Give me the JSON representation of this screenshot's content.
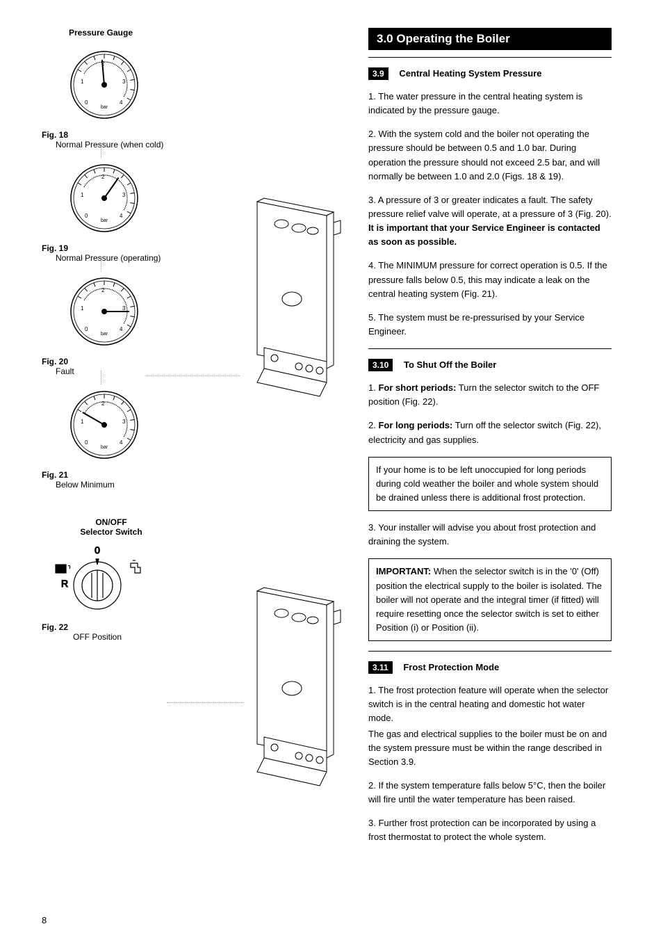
{
  "page_number": "8",
  "left": {
    "pressure_gauge_title": "Pressure Gauge",
    "figs": [
      {
        "label": "Fig. 18",
        "caption": "Normal Pressure (when cold)",
        "needle_deg": -95,
        "fill_start": -150,
        "fill_end": -95
      },
      {
        "label": "Fig. 19",
        "caption": "Normal Pressure (operating)",
        "needle_deg": -55,
        "fill_start": -150,
        "fill_end": -55
      },
      {
        "label": "Fig. 20",
        "caption": "Fault",
        "needle_deg": 0,
        "fill_start": -150,
        "fill_end": 0
      },
      {
        "label": "Fig. 21",
        "caption": "Below Minimum",
        "needle_deg": -150,
        "fill_start": -150,
        "fill_end": -150
      }
    ],
    "switch": {
      "title1": "ON/OFF",
      "title2": "Selector Switch",
      "fig_label": "Fig. 22",
      "caption": "OFF Position",
      "zero": "0",
      "r": "R"
    }
  },
  "right": {
    "section_header": "3.0  Operating the Boiler",
    "s39": {
      "num": "3.9",
      "title": "Central Heating System Pressure",
      "p1": "1. The water pressure in the central heating system is indicated by the pressure gauge.",
      "p2": "2. With the system cold and the boiler not operating the pressure should be between 0.5 and 1.0 bar. During operation the pressure should not exceed 2.5 bar, and will normally be between 1.0 and 2.0 (Figs. 18 & 19).",
      "p3a": "3. A pressure of 3 or greater indicates a fault. The safety pressure relief valve will operate, at a pressure of 3 (Fig. 20). ",
      "p3b": "It is important that your Service Engineer is contacted as soon as possible.",
      "p4": "4. The MINIMUM pressure for correct operation is 0.5. If the pressure falls below 0.5, this may indicate a leak on the central heating system (Fig. 21).",
      "p5": "5. The system must be re-pressurised by your Service Engineer."
    },
    "s310": {
      "num": "3.10",
      "title": "To Shut Off the Boiler",
      "p1a": "1. ",
      "p1b": "For short periods:",
      "p1c": " Turn the selector switch to the OFF position (Fig. 22).",
      "p2a": "2. ",
      "p2b": "For long periods:",
      "p2c": " Turn off the selector switch (Fig. 22), electricity and gas supplies.",
      "box1": "If your home is to be left unoccupied for long periods during cold weather the boiler and whole system should be drained unless there is additional frost protection.",
      "p3": "3. Your installer will advise you about frost protection and draining the system.",
      "box2a": "IMPORTANT:",
      "box2b": " When the selector switch is in the '0' (Off) position the electrical supply to the boiler is isolated. The boiler will not operate and the integral timer (if fitted) will require resetting once the selector switch is set to either Position (i) or Position (ii)."
    },
    "s311": {
      "num": "3.11",
      "title": "Frost Protection Mode",
      "p1": "1. The frost protection feature will operate when the selector switch is in the central heating and domestic hot water mode.",
      "p1b": "The gas and electrical supplies to the boiler must be on and the system pressure must be within the range described in Section 3.9.",
      "p2": "2. If the system temperature falls below 5°C, then the boiler will fire until the water temperature has been raised.",
      "p3": "3. Further frost protection can be incorporated by using a frost thermostat to protect the whole system."
    }
  },
  "gauge_style": {
    "outer_stroke": "#000",
    "inner_stroke": "#000",
    "tick_stroke": "#000",
    "needle_stroke": "#000",
    "bar_label": "bar",
    "diameter": 110
  }
}
